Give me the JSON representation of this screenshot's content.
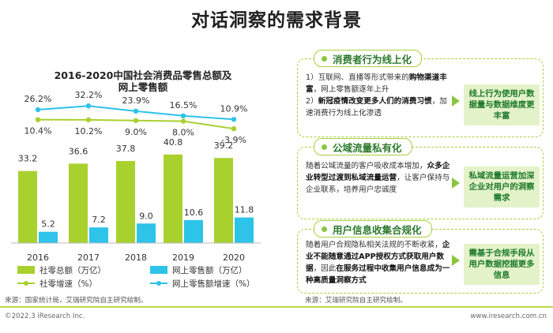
{
  "title": "对话洞察的需求背景",
  "chart_data": {
    "type": "bar",
    "title_line1": "2016-2020中国社会消费品零售总额及",
    "title_line2": "网上零售额",
    "categories": [
      "2016",
      "2017",
      "2018",
      "2019",
      "2020"
    ],
    "series": [
      {
        "name": "社零总额（万亿）",
        "values": [
          33.2,
          36.6,
          37.8,
          40.8,
          39.2
        ],
        "value_labels": [
          "33.2",
          "36.6",
          "37.8",
          "40.8",
          "39.2"
        ],
        "color": "#a9d12e"
      },
      {
        "name": "网上零售额（万亿）",
        "values": [
          5.2,
          7.2,
          9.0,
          10.6,
          11.8
        ],
        "value_labels": [
          "5.2",
          "7.2",
          "9.0",
          "10.6",
          "11.8"
        ],
        "color": "#2ec3e8"
      },
      {
        "name": "社零增速（%）",
        "values": [
          10.4,
          10.2,
          9.0,
          8.0,
          -3.9
        ],
        "value_labels": [
          "10.4%",
          "10.2%",
          "9.0%",
          "8.0%",
          "-3.9%"
        ],
        "color": "#a9d12e"
      },
      {
        "name": "网上零售额增速（%）",
        "values": [
          26.2,
          32.2,
          23.9,
          16.5,
          10.9
        ],
        "value_labels": [
          "26.2%",
          "32.2%",
          "23.9%",
          "16.5%",
          "10.9%"
        ],
        "color": "#2ec3e8"
      }
    ],
    "legend_position": "bottom"
  },
  "source_left": "来源：国家统计局，艾瑞研究院自主研究绘制。",
  "source_right": "来源：艾瑞研究院自主研究绘制。",
  "cards": [
    {
      "title": "消费者行为线上化",
      "text_html": "1）互联网、直播等形式带来的<b>购物渠道丰富</b>，网上零售额逐年上升<br>2）<b>新冠疫情改变更多人们的消费习惯</b>，加速消费行为线上化渗透",
      "result": "线上行为使用户数据量与数据维度更丰富"
    },
    {
      "title": "公域流量私有化",
      "text_html": "随着公域流量的客户吸收成本增加，<b>众多企业转型过渡到私域流量运营</b>，让客户保持与企业联系，培养用户忠诚度",
      "result": "私域流量运营加深企业对用户的洞察需求"
    },
    {
      "title": "用户信息收集合规化",
      "text_html": "随着用户合规隐私相关法规的不断收紧，<b>企业不能随意通过APP授权方式获取用户数据</b>，因此<b>在服务过程中收集用户信息成为一种高质量洞察方式</b>",
      "result": "需基于合规手段从用户数据挖掘更多信息"
    }
  ],
  "footer": {
    "copyright": "©2022.3 iResearch Inc.",
    "website": "www.iresearch.com.cn"
  }
}
